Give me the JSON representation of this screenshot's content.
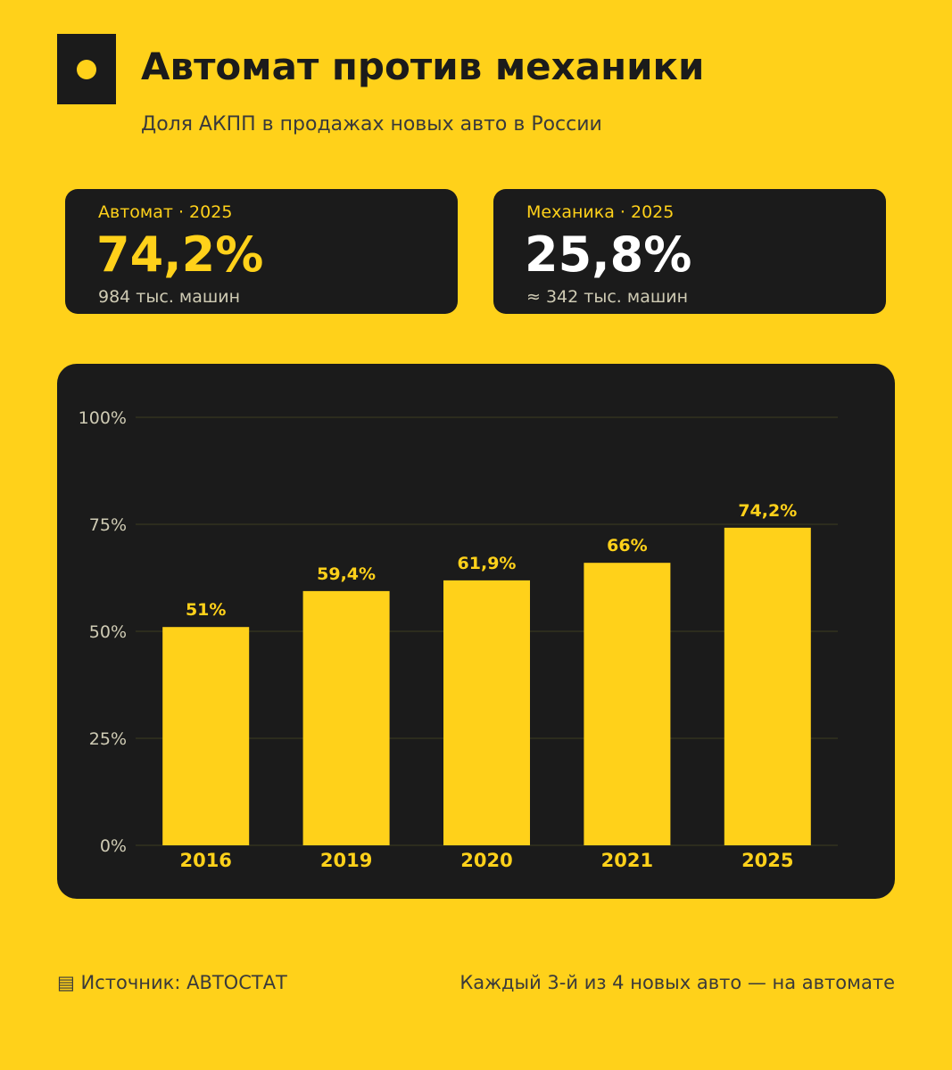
{
  "header": {
    "logo_icon": "square-dot-logo-icon",
    "title": "Автомат против механики",
    "subtitle": "Доля АКПП в продажах новых авто в России"
  },
  "stats": [
    {
      "label": "Автомат · 2025",
      "value": "74,2%",
      "note": "984 тыс. машин",
      "color": "#FFD11A"
    },
    {
      "label": "Механика · 2025",
      "value": "25,8%",
      "note": "≈ 342 тыс. машин",
      "color": "#ffffff"
    }
  ],
  "chart_data": {
    "type": "bar",
    "categories": [
      "2016",
      "2019",
      "2020",
      "2021",
      "2025"
    ],
    "values": [
      51,
      59.4,
      61.9,
      66,
      74.2
    ],
    "data_labels": [
      "51%",
      "59,4%",
      "61,9%",
      "66%",
      "74,2%"
    ],
    "yticks": [
      0,
      25,
      50,
      75,
      100
    ],
    "ytick_labels": [
      "0%",
      "25%",
      "50%",
      "75%",
      "100%"
    ],
    "ylim": [
      0,
      100
    ],
    "grid": true,
    "title": "",
    "xlabel": "",
    "ylabel": "",
    "colors": {
      "bar": "#FFD11A",
      "background": "#1b1b1b",
      "grid": "#33331f",
      "tick_text": "#cfcbb4"
    }
  },
  "footer": {
    "source_icon": "document-icon",
    "source": "▤ Источник: АВТОСТАТ",
    "tagline": "Каждый 3-й из 4 новых авто — на автомате"
  },
  "colors": {
    "accent": "#FFD11A",
    "dark": "#1b1b1b"
  }
}
